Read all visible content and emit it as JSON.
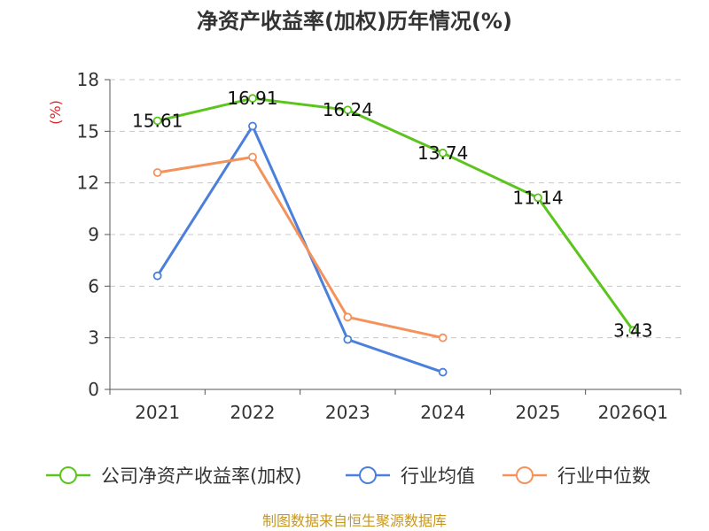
{
  "chart_data": {
    "type": "line",
    "title": "净资产收益率(加权)历年情况(%)",
    "ylabel": "(%)",
    "xlabel": "",
    "categories": [
      "2021",
      "2022",
      "2023",
      "2024",
      "2025",
      "2026Q1"
    ],
    "ylim": [
      0,
      18
    ],
    "yticks": [
      0,
      3,
      6,
      9,
      12,
      15,
      18
    ],
    "grid": true,
    "legend_position": "bottom",
    "series": [
      {
        "name": "公司净资产收益率(加权)",
        "color": "#5cc41e",
        "values": [
          15.61,
          16.91,
          16.24,
          13.74,
          11.14,
          3.43
        ],
        "labels": [
          "15.61",
          "16.91",
          "16.24",
          "13.74",
          "11.14",
          "3.43"
        ]
      },
      {
        "name": "行业均值",
        "color": "#4a7fdc",
        "values": [
          6.6,
          15.3,
          2.9,
          1.0,
          null,
          null
        ]
      },
      {
        "name": "行业中位数",
        "color": "#f4925c",
        "values": [
          12.6,
          13.5,
          4.2,
          3.0,
          null,
          null
        ]
      }
    ]
  },
  "source": "制图数据来自恒生聚源数据库"
}
